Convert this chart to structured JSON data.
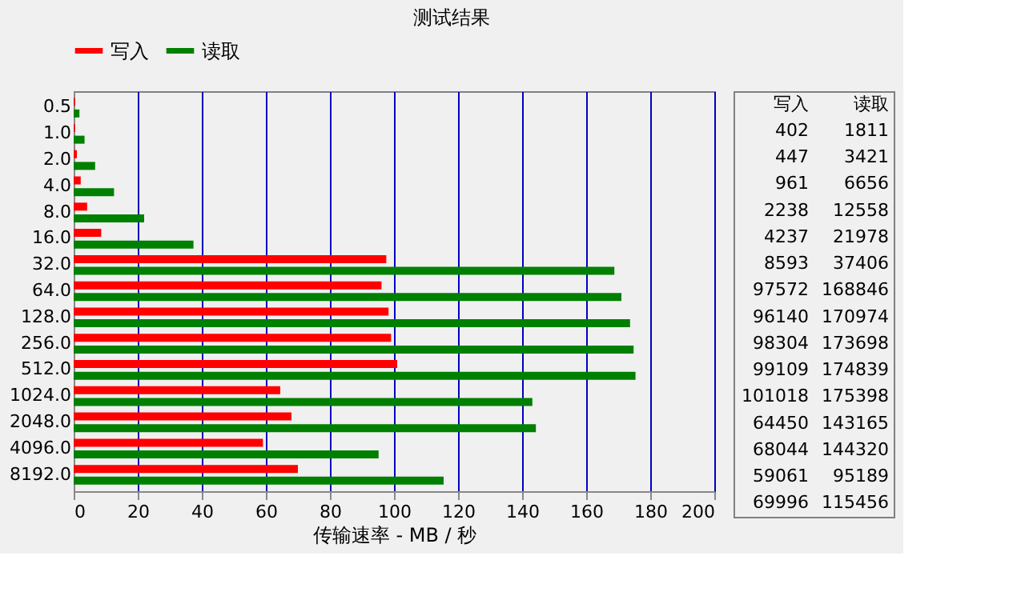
{
  "chart_data": {
    "type": "bar",
    "orientation": "horizontal",
    "title": "测试结果",
    "xlabel": "传输速率 - MB / 秒",
    "categories": [
      "0.5",
      "1.0",
      "2.0",
      "4.0",
      "8.0",
      "16.0",
      "32.0",
      "64.0",
      "128.0",
      "256.0",
      "512.0",
      "1024.0",
      "2048.0",
      "4096.0",
      "8192.0"
    ],
    "series": [
      {
        "name": "写入",
        "color": "#ff0000",
        "values": [
          0.4,
          0.4,
          1.0,
          2.2,
          4.2,
          8.6,
          97.6,
          96.1,
          98.3,
          99.1,
          101.0,
          64.5,
          68.0,
          59.1,
          70.0
        ]
      },
      {
        "name": "读取",
        "color": "#008000",
        "values": [
          1.8,
          3.4,
          6.7,
          12.6,
          22.0,
          37.4,
          168.8,
          171.0,
          173.7,
          174.8,
          175.4,
          143.2,
          144.3,
          95.2,
          115.5
        ]
      }
    ],
    "annotations": [
      "写入",
      "读取",
      "402",
      "1811",
      "447",
      "3421",
      "961",
      "6656",
      "2238",
      "12558",
      "4237",
      "21978",
      "8593",
      "37406",
      "97572",
      "168846",
      "96140",
      "170974",
      "98304",
      "173698",
      "99109",
      "174839",
      "101018",
      "175398",
      "64450",
      "143165",
      "68044",
      "144320",
      "59061",
      "95189",
      "69996",
      "115456"
    ],
    "xlim": [
      0,
      200
    ],
    "xticks": [
      0,
      20,
      40,
      60,
      80,
      100,
      120,
      140,
      160,
      180,
      200
    ],
    "grid": "x",
    "legend": "top"
  }
}
